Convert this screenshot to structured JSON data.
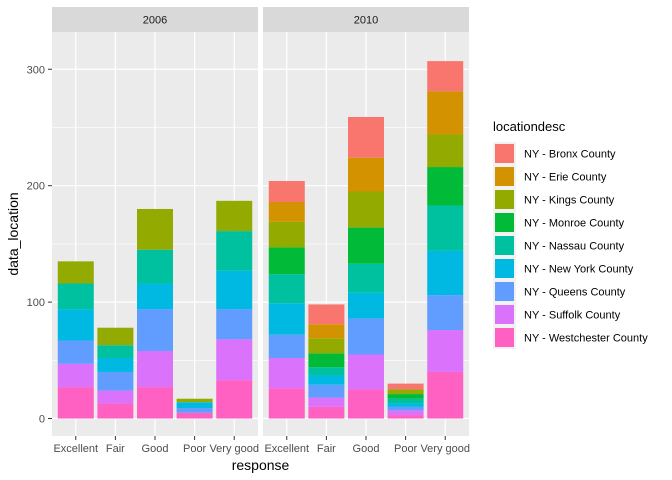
{
  "chart_data": {
    "type": "bar",
    "stacked": true,
    "facets": [
      "2006",
      "2010"
    ],
    "xlabel": "response",
    "ylabel": "data_location",
    "categories": [
      "Excellent",
      "Fair",
      "Good",
      "Poor",
      "Very good"
    ],
    "ylim": [
      -15,
      332
    ],
    "yticks": [
      0,
      100,
      200,
      300
    ],
    "legend": {
      "title": "locationdesc",
      "position": "right"
    },
    "grid": true,
    "series": [
      {
        "name": "NY - Bronx County",
        "color": "#F8766D",
        "values": {
          "2006": [
            0,
            0,
            0,
            0,
            0
          ],
          "2010": [
            18,
            17,
            35,
            5,
            26
          ]
        }
      },
      {
        "name": "NY - Erie County",
        "color": "#D39200",
        "values": {
          "2006": [
            0,
            0,
            0,
            0,
            0
          ],
          "2010": [
            17,
            12,
            29,
            0,
            37
          ]
        }
      },
      {
        "name": "NY - Kings County",
        "color": "#93AA00",
        "values": {
          "2006": [
            19,
            15,
            35,
            3,
            26
          ],
          "2010": [
            22,
            13,
            31,
            4,
            28
          ]
        }
      },
      {
        "name": "NY - Monroe County",
        "color": "#00BA38",
        "values": {
          "2006": [
            0,
            0,
            0,
            0,
            0
          ],
          "2010": [
            23,
            12,
            31,
            4,
            33
          ]
        }
      },
      {
        "name": "NY - Nassau County",
        "color": "#00C19F",
        "values": {
          "2006": [
            22,
            11,
            29,
            0,
            34
          ],
          "2010": [
            25,
            7,
            25,
            4,
            39
          ]
        }
      },
      {
        "name": "NY - New York County",
        "color": "#00B9E3",
        "values": {
          "2006": [
            27,
            12,
            22,
            5,
            33
          ],
          "2010": [
            27,
            8,
            22,
            3,
            38
          ]
        }
      },
      {
        "name": "NY - Queens County",
        "color": "#619CFF",
        "values": {
          "2006": [
            20,
            16,
            36,
            4,
            26
          ],
          "2010": [
            20,
            11,
            31,
            3,
            30
          ]
        }
      },
      {
        "name": "NY - Suffolk County",
        "color": "#DB72FB",
        "values": {
          "2006": [
            20,
            11,
            31,
            0,
            35
          ],
          "2010": [
            26,
            8,
            30,
            4,
            36
          ]
        }
      },
      {
        "name": "NY - Westchester County",
        "color": "#FF61C3",
        "values": {
          "2006": [
            27,
            13,
            27,
            5,
            33
          ],
          "2010": [
            26,
            10,
            25,
            3,
            40
          ]
        }
      }
    ]
  }
}
